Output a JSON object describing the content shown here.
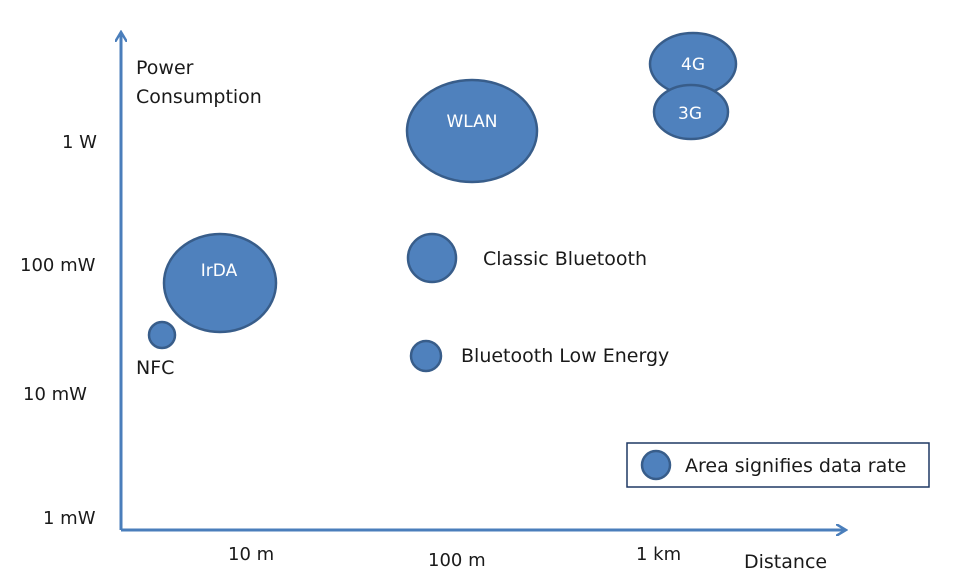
{
  "chart_data": {
    "type": "scatter",
    "title": "",
    "xlabel": "Distance",
    "ylabel_line1": "Power",
    "ylabel_line2": "Consumption",
    "x_ticks": [
      "10 m",
      "100 m",
      "1 km"
    ],
    "y_ticks": [
      "1 W",
      "100 mW",
      "10 mW",
      "1 mW"
    ],
    "points": [
      {
        "name": "4G",
        "label_position": "inside"
      },
      {
        "name": "3G",
        "label_position": "inside"
      },
      {
        "name": "WLAN",
        "label_position": "inside"
      },
      {
        "name": "IrDA",
        "label_position": "inside"
      },
      {
        "name": "NFC",
        "label_position": "below"
      },
      {
        "name": "Classic Bluetooth",
        "label_position": "right"
      },
      {
        "name": "Bluetooth Low Energy",
        "label_position": "right"
      }
    ],
    "legend": {
      "text": "Area signifies data rate",
      "placement": "bottom-right"
    },
    "colors": {
      "bubble_fill": "#4f81bd",
      "bubble_stroke": "#385d8a",
      "axis": "#4a7ebb",
      "legend_border": "#1f3864"
    }
  }
}
